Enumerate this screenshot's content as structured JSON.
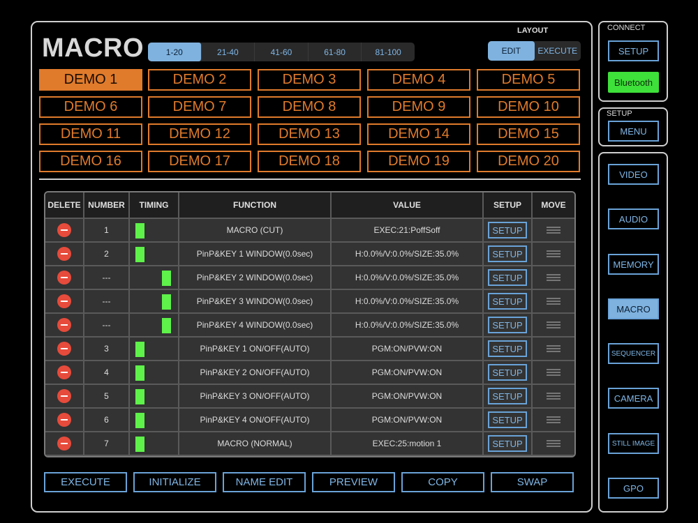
{
  "title": "MACRO",
  "page_tabs": [
    {
      "label": "1-20",
      "active": true
    },
    {
      "label": "21-40",
      "active": false
    },
    {
      "label": "41-60",
      "active": false
    },
    {
      "label": "61-80",
      "active": false
    },
    {
      "label": "81-100",
      "active": false
    }
  ],
  "layout": {
    "label": "LAYOUT",
    "options": [
      {
        "label": "EDIT",
        "active": true
      },
      {
        "label": "EXECUTE",
        "active": false
      }
    ]
  },
  "demos": [
    "DEMO 1",
    "DEMO 2",
    "DEMO 3",
    "DEMO 4",
    "DEMO 5",
    "DEMO 6",
    "DEMO 7",
    "DEMO 8",
    "DEMO 9",
    "DEMO 10",
    "DEMO 11",
    "DEMO 12",
    "DEMO 13",
    "DEMO 14",
    "DEMO 15",
    "DEMO 16",
    "DEMO 17",
    "DEMO 18",
    "DEMO 19",
    "DEMO 20"
  ],
  "active_demo": "DEMO 1",
  "table": {
    "headers": {
      "delete": "DELETE",
      "number": "NUMBER",
      "timing": "TIMING",
      "function": "FUNCTION",
      "value": "VALUE",
      "setup": "SETUP",
      "move": "MOVE"
    },
    "setup_label": "SETUP",
    "rows": [
      {
        "number": "1",
        "timing": "left",
        "function": "MACRO (CUT)",
        "value": "EXEC:21:PoffSoff"
      },
      {
        "number": "2",
        "timing": "left",
        "function": "PinP&KEY 1 WINDOW(0.0sec)",
        "value": "H:0.0%/V:0.0%/SIZE:35.0%"
      },
      {
        "number": "---",
        "timing": "right",
        "function": "PinP&KEY 2 WINDOW(0.0sec)",
        "value": "H:0.0%/V:0.0%/SIZE:35.0%"
      },
      {
        "number": "---",
        "timing": "right",
        "function": "PinP&KEY 3 WINDOW(0.0sec)",
        "value": "H:0.0%/V:0.0%/SIZE:35.0%"
      },
      {
        "number": "---",
        "timing": "right",
        "function": "PinP&KEY 4 WINDOW(0.0sec)",
        "value": "H:0.0%/V:0.0%/SIZE:35.0%"
      },
      {
        "number": "3",
        "timing": "left",
        "function": "PinP&KEY 1 ON/OFF(AUTO)",
        "value": "PGM:ON/PVW:ON"
      },
      {
        "number": "4",
        "timing": "left",
        "function": "PinP&KEY 2 ON/OFF(AUTO)",
        "value": "PGM:ON/PVW:ON"
      },
      {
        "number": "5",
        "timing": "left",
        "function": "PinP&KEY 3 ON/OFF(AUTO)",
        "value": "PGM:ON/PVW:ON"
      },
      {
        "number": "6",
        "timing": "left",
        "function": "PinP&KEY 4 ON/OFF(AUTO)",
        "value": "PGM:ON/PVW:ON"
      },
      {
        "number": "7",
        "timing": "left",
        "function": "MACRO (NORMAL)",
        "value": "EXEC:25:motion 1"
      }
    ]
  },
  "bottom_buttons": [
    "EXECUTE",
    "INITIALIZE",
    "NAME EDIT",
    "PREVIEW",
    "COPY",
    "SWAP"
  ],
  "connect": {
    "label": "CONNECT",
    "setup_button": "SETUP",
    "bluetooth_button": "Bluetooth"
  },
  "setup_panel": {
    "label": "SETUP",
    "menu_button": "MENU"
  },
  "nav": [
    {
      "label": "VIDEO",
      "active": false
    },
    {
      "label": "AUDIO",
      "active": false
    },
    {
      "label": "MEMORY",
      "active": false
    },
    {
      "label": "MACRO",
      "active": true
    },
    {
      "label": "SEQUENCER",
      "active": false
    },
    {
      "label": "CAMERA",
      "active": false
    },
    {
      "label": "STILL IMAGE",
      "active": false
    },
    {
      "label": "GPO",
      "active": false
    }
  ],
  "colors": {
    "accent_orange": "#e07b2c",
    "accent_blue": "#7fb2df",
    "timing_green": "#5ef24a",
    "delete_red": "#e64b3b",
    "bluetooth_green": "#3ee03a"
  }
}
